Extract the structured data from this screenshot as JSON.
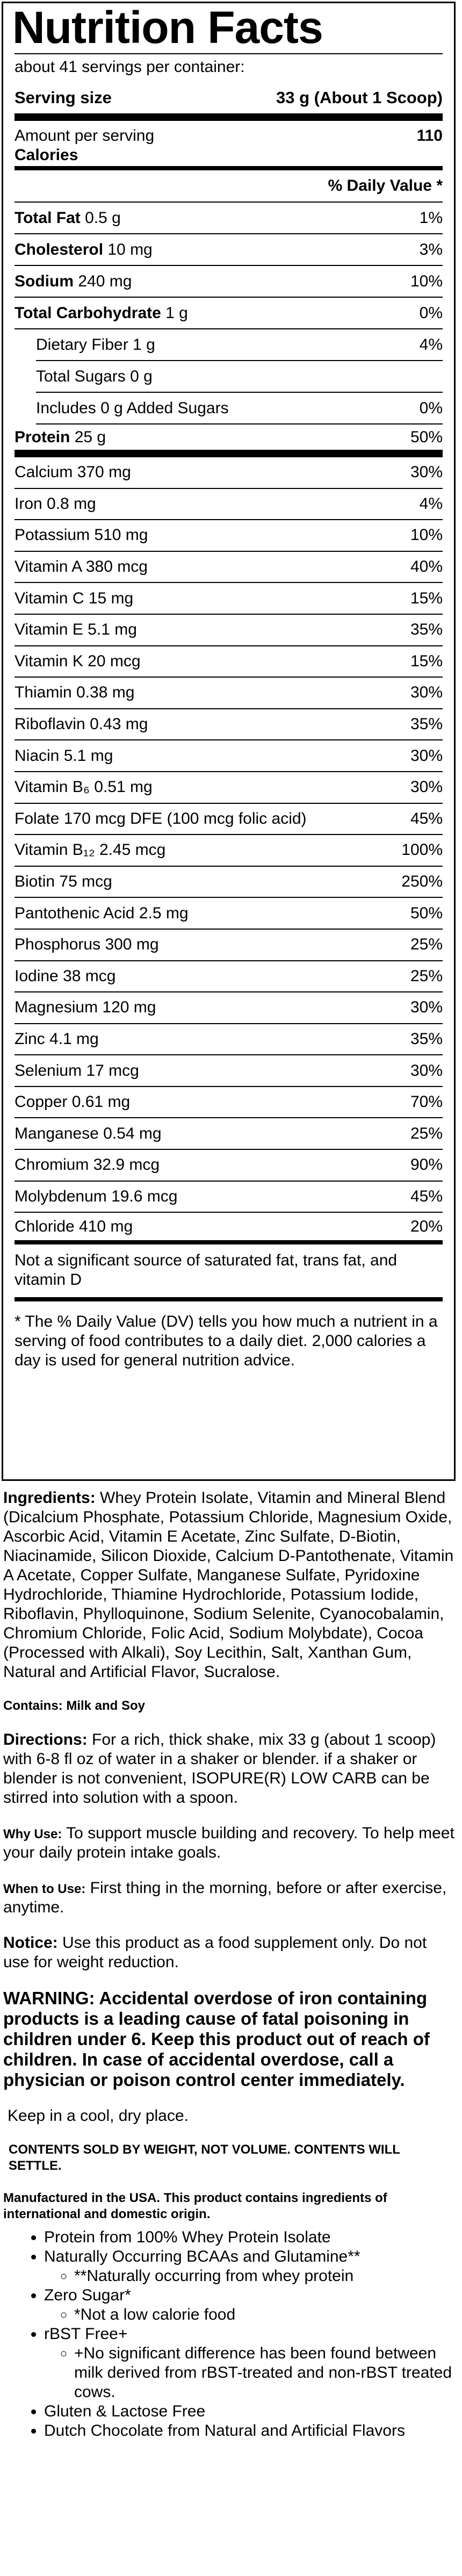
{
  "label": {
    "title": "Nutrition Facts",
    "servings": "about 41 servings per container:",
    "serving_size_label": "Serving size",
    "serving_size_value": "33 g (About 1 Scoop)",
    "amount_per_serving": "Amount per serving",
    "calories_label": "Calories",
    "calories_value": "110",
    "dv_header": "% Daily Value *",
    "macros": [
      {
        "name_bold": "Total Fat",
        "amount": " 0.5 g",
        "dv": "1%"
      },
      {
        "name_bold": "Cholesterol",
        "amount": " 10 mg",
        "dv": "3%"
      },
      {
        "name_bold": "Sodium",
        "amount": " 240 mg",
        "dv": "10%"
      },
      {
        "name_bold": "Total Carbohydrate",
        "amount": " 1 g",
        "dv": "0%"
      }
    ],
    "carb_sub": [
      {
        "name": "Dietary Fiber  1 g",
        "dv": "4%"
      },
      {
        "name": "Total Sugars  0 g",
        "dv": ""
      },
      {
        "name": "Includes 0 g Added Sugars",
        "dv": "0%"
      }
    ],
    "protein": {
      "name_bold": "Protein",
      "amount": "  25 g",
      "dv": "50%"
    },
    "vitamins": [
      {
        "name": "Calcium 370 mg",
        "dv": "30%"
      },
      {
        "name": "Iron 0.8 mg",
        "dv": "4%"
      },
      {
        "name": "Potassium 510 mg",
        "dv": "10%"
      },
      {
        "name": "Vitamin A 380 mcg",
        "dv": "40%"
      },
      {
        "name": "Vitamin C 15 mg",
        "dv": "15%"
      },
      {
        "name": "Vitamin E 5.1 mg",
        "dv": "35%"
      },
      {
        "name": "Vitamin K 20 mcg",
        "dv": "15%"
      },
      {
        "name": "Thiamin 0.38 mg",
        "dv": "30%"
      },
      {
        "name": "Riboflavin 0.43 mg",
        "dv": "35%"
      },
      {
        "name": "Niacin 5.1 mg",
        "dv": "30%"
      },
      {
        "name": "Vitamin B₆ 0.51 mg",
        "dv": "30%"
      },
      {
        "name": "Folate 170 mcg DFE (100 mcg folic acid)",
        "dv": "45%"
      },
      {
        "name": "Vitamin B₁₂ 2.45 mcg",
        "dv": "100%"
      },
      {
        "name": "Biotin 75 mcg",
        "dv": "250%"
      },
      {
        "name": "Pantothenic Acid 2.5 mg",
        "dv": "50%"
      },
      {
        "name": "Phosphorus 300 mg",
        "dv": "25%"
      },
      {
        "name": "Iodine 38 mcg",
        "dv": "25%"
      },
      {
        "name": "Magnesium 120 mg",
        "dv": "30%"
      },
      {
        "name": "Zinc 4.1 mg",
        "dv": "35%"
      },
      {
        "name": "Selenium 17 mcg",
        "dv": "30%"
      },
      {
        "name": "Copper 0.61 mg",
        "dv": "70%"
      },
      {
        "name": "Manganese 0.54 mg",
        "dv": "25%"
      },
      {
        "name": "Chromium 32.9 mcg",
        "dv": "90%"
      },
      {
        "name": "Molybdenum 19.6 mcg",
        "dv": "45%"
      },
      {
        "name": "Chloride 410 mg",
        "dv": "20%"
      }
    ],
    "not_significant": "Not a significant source of saturated fat, trans fat, and vitamin D",
    "footnote": "* The % Daily Value (DV) tells you how much a nutrient in a serving of food contributes to a daily diet. 2,000 calories a day is used for general nutrition advice."
  },
  "ingredients": {
    "label": "Ingredients:",
    "text": " Whey Protein Isolate, Vitamin and Mineral Blend (Dicalcium Phosphate, Potassium Chloride, Magnesium Oxide, Ascorbic Acid, Vitamin E Acetate, Zinc Sulfate, D-Biotin, Niacinamide, Silicon Dioxide, Calcium D-Pantothenate, Vitamin A Acetate, Copper Sulfate, Manganese Sulfate, Pyridoxine Hydrochloride, Thiamine Hydrochloride, Potassium Iodide, Riboflavin, Phylloquinone, Sodium Selenite, Cyanocobalamin, Chromium Chloride, Folic Acid, Sodium Molybdate), Cocoa (Processed with Alkali), Soy Lecithin, Salt, Xanthan Gum, Natural and Artificial Flavor, Sucralose."
  },
  "contains": "Contains: Milk and Soy",
  "directions": {
    "label": "Directions:",
    "text": " For a rich, thick shake, mix 33 g (about 1 scoop) with 6-8 fl oz of water in a shaker or blender. if a shaker or blender is not convenient, ISOPURE(R) LOW CARB can be stirred into solution with a spoon."
  },
  "why_use": {
    "label": "Why Use:",
    "text": " To support muscle building and recovery. To help meet your daily protein intake goals."
  },
  "when_to_use": {
    "label": "When to Use:",
    "text": " First thing in the morning, before or after exercise, anytime."
  },
  "notice": {
    "label": "Notice:",
    "text": " Use this product as a food supplement only. Do not use for weight reduction."
  },
  "warning": "WARNING: Accidental overdose of iron containing products is a leading cause of fatal poisoning in children under 6. Keep this product out of reach of children. In case of accidental overdose, call a physician or poison control center immediately.",
  "storage": "Keep in a cool, dry place.",
  "contents": "CONTENTS SOLD BY WEIGHT, NOT VOLUME. CONTENTS WILL SETTLE.",
  "manufactured": "Manufactured in the USA. This product contains ingredients of international and domestic origin.",
  "features": [
    {
      "text": "Protein from 100% Whey Protein Isolate",
      "sub": []
    },
    {
      "text": "Naturally Occurring BCAAs and Glutamine**",
      "sub": [
        "**Naturally occurring from whey protein"
      ]
    },
    {
      "text": "Zero Sugar*",
      "sub": [
        "*Not a low calorie food"
      ]
    },
    {
      "text": "rBST Free+",
      "sub": [
        "+No significant difference has been found between milk derived from rBST-treated and non-rBST treated cows."
      ]
    },
    {
      "text": "Gluten & Lactose Free",
      "sub": []
    },
    {
      "text": "Dutch Chocolate from Natural and Artificial Flavors",
      "sub": []
    }
  ]
}
